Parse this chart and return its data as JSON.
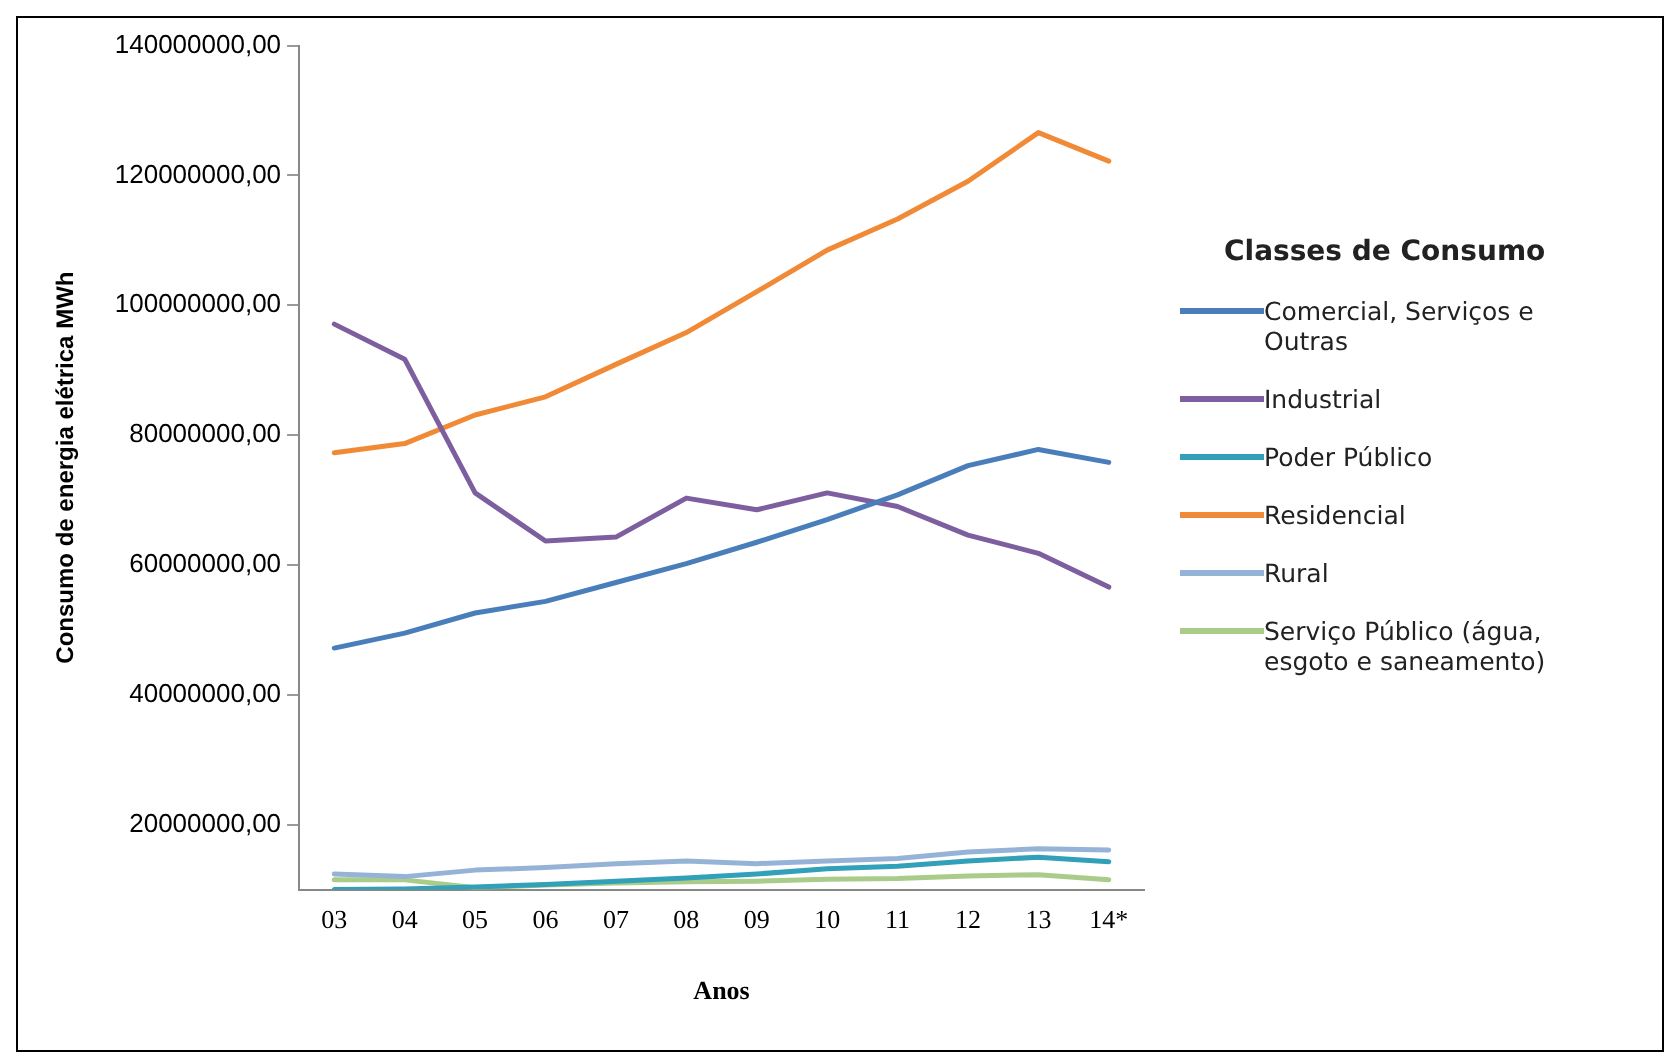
{
  "chart_data": {
    "type": "line",
    "xlabel": "Anos",
    "ylabel": "Consumo de energia elétrica MWh",
    "legend_title": "Classes de Consumo",
    "legend": "right",
    "grid": false,
    "marker": "none",
    "line_style": "solid",
    "categories": [
      "03",
      "04",
      "05",
      "06",
      "07",
      "08",
      "09",
      "10",
      "11",
      "12",
      "13",
      "14*"
    ],
    "ylim": [
      10000000,
      140000000
    ],
    "yticks": [
      {
        "value": 20000000,
        "label": "20000000,00"
      },
      {
        "value": 40000000,
        "label": "40000000,00"
      },
      {
        "value": 60000000,
        "label": "60000000,00"
      },
      {
        "value": 80000000,
        "label": "80000000,00"
      },
      {
        "value": 100000000,
        "label": "100000000,00"
      },
      {
        "value": 120000000,
        "label": "120000000,00"
      },
      {
        "value": 140000000,
        "label": "140000000,00"
      }
    ],
    "series": [
      {
        "name": "Comercial, Serviços e Outras",
        "color": "#4a7ebb",
        "values": [
          47200000,
          49500000,
          52600000,
          54400000,
          57300000,
          60200000,
          63500000,
          67000000,
          70800000,
          75300000,
          77800000,
          75800000
        ]
      },
      {
        "name": "Industrial",
        "color": "#7d5fa0",
        "values": [
          97100000,
          91700000,
          71100000,
          63700000,
          64300000,
          70300000,
          68500000,
          71100000,
          69000000,
          64600000,
          61800000,
          56600000
        ]
      },
      {
        "name": "Poder Público",
        "color": "#31a0b8",
        "values": [
          10000000,
          10100000,
          10400000,
          10800000,
          11300000,
          11800000,
          12400000,
          13200000,
          13600000,
          14400000,
          15000000,
          14300000
        ]
      },
      {
        "name": "Residencial",
        "color": "#f08a36",
        "values": [
          77300000,
          78700000,
          83100000,
          85900000,
          90900000,
          95800000,
          102100000,
          108500000,
          113300000,
          119100000,
          126600000,
          122200000
        ]
      },
      {
        "name": "Rural",
        "color": "#95b3d7",
        "values": [
          12400000,
          12000000,
          13000000,
          13400000,
          14000000,
          14400000,
          14000000,
          14400000,
          14800000,
          15800000,
          16300000,
          16100000
        ]
      },
      {
        "name": "Serviço Público (água, esgoto e saneamento)",
        "color": "#a9cc8a",
        "values": [
          11500000,
          11500000,
          10300000,
          10700000,
          11000000,
          11200000,
          11300000,
          11600000,
          11700000,
          12100000,
          12300000,
          11500000
        ]
      }
    ]
  }
}
